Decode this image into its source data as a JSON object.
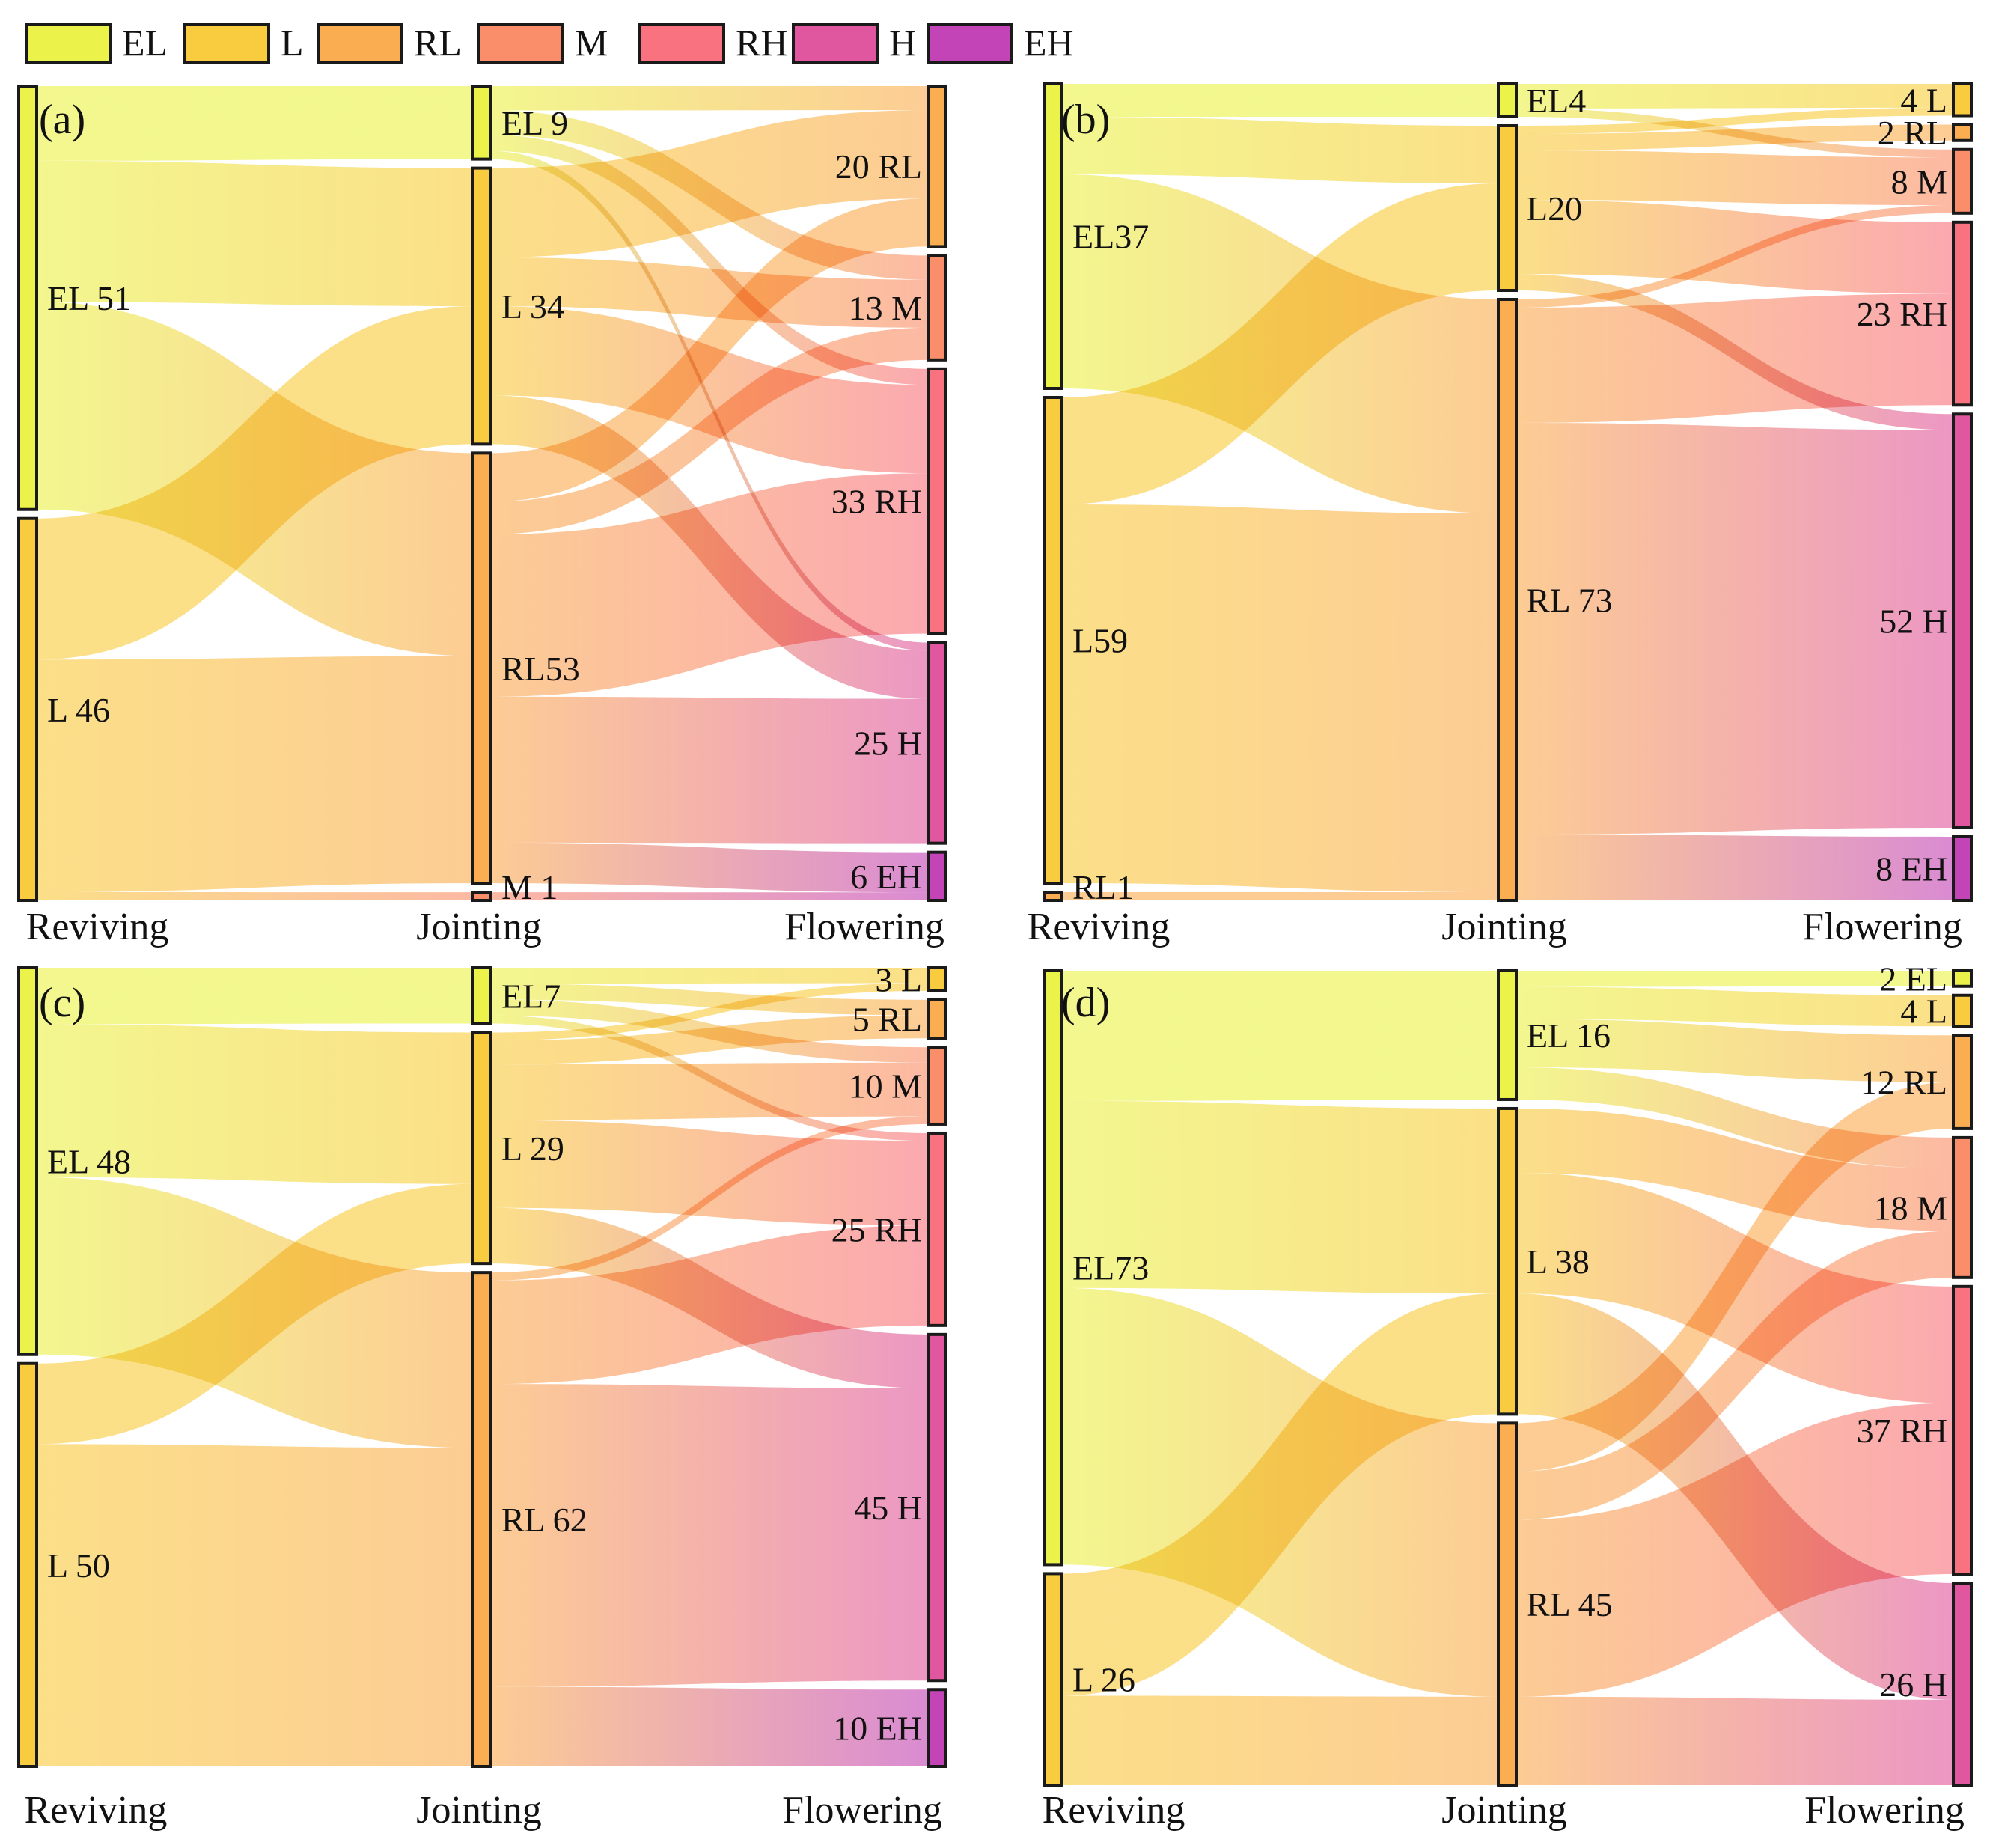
{
  "legend": {
    "items": [
      {
        "key": "EL",
        "label": "EL"
      },
      {
        "key": "L",
        "label": "L"
      },
      {
        "key": "RL",
        "label": "RL"
      },
      {
        "key": "M",
        "label": "M"
      },
      {
        "key": "RH",
        "label": "RH"
      },
      {
        "key": "H",
        "label": "H"
      },
      {
        "key": "EH",
        "label": "EH"
      }
    ]
  },
  "colors": {
    "EL": "#ebf249",
    "L": "#f9cc3f",
    "RL": "#fbad52",
    "M": "#fa8e6a",
    "RH": "#f8737f",
    "H": "#e0579f",
    "EH": "#c344b6"
  },
  "chart_data": [
    {
      "type": "sankey",
      "panel": "(a)",
      "stages": [
        "Reviving",
        "Jointing",
        "Flowering"
      ],
      "nodes": [
        [
          {
            "id": "EL",
            "value": 51,
            "label": "EL 51"
          },
          {
            "id": "L",
            "value": 46,
            "label": "L 46"
          }
        ],
        [
          {
            "id": "EL",
            "value": 9,
            "label": "EL 9"
          },
          {
            "id": "L",
            "value": 34,
            "label": "L 34"
          },
          {
            "id": "RL",
            "value": 53,
            "label": "RL53"
          },
          {
            "id": "M",
            "value": 1,
            "label": "M 1"
          }
        ],
        [
          {
            "id": "RL",
            "value": 20,
            "label": "20 RL"
          },
          {
            "id": "M",
            "value": 13,
            "label": "13 M"
          },
          {
            "id": "RH",
            "value": 33,
            "label": "33 RH"
          },
          {
            "id": "H",
            "value": 25,
            "label": "25 H"
          },
          {
            "id": "EH",
            "value": 6,
            "label": "6 EH"
          }
        ]
      ],
      "links": [
        [
          {
            "from": "EL",
            "to": "EL",
            "value": 9
          },
          {
            "from": "EL",
            "to": "L",
            "value": 17
          },
          {
            "from": "EL",
            "to": "RL",
            "value": 25
          },
          {
            "from": "L",
            "to": "L",
            "value": 17
          },
          {
            "from": "L",
            "to": "RL",
            "value": 28
          },
          {
            "from": "L",
            "to": "M",
            "value": 1
          }
        ],
        [
          {
            "from": "EL",
            "to": "RL",
            "value": 3
          },
          {
            "from": "EL",
            "to": "M",
            "value": 3
          },
          {
            "from": "EL",
            "to": "RH",
            "value": 2
          },
          {
            "from": "EL",
            "to": "H",
            "value": 1
          },
          {
            "from": "L",
            "to": "RL",
            "value": 11
          },
          {
            "from": "L",
            "to": "M",
            "value": 6
          },
          {
            "from": "L",
            "to": "RH",
            "value": 11
          },
          {
            "from": "L",
            "to": "H",
            "value": 6
          },
          {
            "from": "RL",
            "to": "RL",
            "value": 6
          },
          {
            "from": "RL",
            "to": "M",
            "value": 4
          },
          {
            "from": "RL",
            "to": "RH",
            "value": 20
          },
          {
            "from": "RL",
            "to": "H",
            "value": 18
          },
          {
            "from": "RL",
            "to": "EH",
            "value": 5
          },
          {
            "from": "M",
            "to": "EH",
            "value": 1
          }
        ]
      ]
    },
    {
      "type": "sankey",
      "panel": "(b)",
      "stages": [
        "Reviving",
        "Jointing",
        "Flowering"
      ],
      "nodes": [
        [
          {
            "id": "EL",
            "value": 37,
            "label": "EL37"
          },
          {
            "id": "L",
            "value": 59,
            "label": "L59"
          },
          {
            "id": "RL",
            "value": 1,
            "label": "RL1"
          }
        ],
        [
          {
            "id": "EL",
            "value": 4,
            "label": "EL4"
          },
          {
            "id": "L",
            "value": 20,
            "label": "L20"
          },
          {
            "id": "RL",
            "value": 73,
            "label": "RL 73"
          }
        ],
        [
          {
            "id": "L",
            "value": 4,
            "label": "4 L"
          },
          {
            "id": "RL",
            "value": 2,
            "label": "2 RL"
          },
          {
            "id": "M",
            "value": 8,
            "label": "8 M"
          },
          {
            "id": "RH",
            "value": 23,
            "label": "23 RH"
          },
          {
            "id": "H",
            "value": 52,
            "label": "52 H"
          },
          {
            "id": "EH",
            "value": 8,
            "label": "8 EH"
          }
        ]
      ],
      "links": [
        [
          {
            "from": "EL",
            "to": "EL",
            "value": 4
          },
          {
            "from": "EL",
            "to": "L",
            "value": 7
          },
          {
            "from": "EL",
            "to": "RL",
            "value": 26
          },
          {
            "from": "L",
            "to": "L",
            "value": 13
          },
          {
            "from": "L",
            "to": "RL",
            "value": 46
          },
          {
            "from": "RL",
            "to": "RL",
            "value": 1
          }
        ],
        [
          {
            "from": "EL",
            "to": "L",
            "value": 3
          },
          {
            "from": "EL",
            "to": "M",
            "value": 1
          },
          {
            "from": "L",
            "to": "L",
            "value": 1
          },
          {
            "from": "L",
            "to": "RL",
            "value": 2
          },
          {
            "from": "L",
            "to": "M",
            "value": 6
          },
          {
            "from": "L",
            "to": "RH",
            "value": 9
          },
          {
            "from": "L",
            "to": "H",
            "value": 2
          },
          {
            "from": "RL",
            "to": "M",
            "value": 1
          },
          {
            "from": "RL",
            "to": "RH",
            "value": 14
          },
          {
            "from": "RL",
            "to": "H",
            "value": 50
          },
          {
            "from": "RL",
            "to": "EH",
            "value": 8
          }
        ]
      ]
    },
    {
      "type": "sankey",
      "panel": "(c)",
      "stages": [
        "Reviving",
        "Jointing",
        "Flowering"
      ],
      "nodes": [
        [
          {
            "id": "EL",
            "value": 48,
            "label": "EL 48"
          },
          {
            "id": "L",
            "value": 50,
            "label": "L 50"
          }
        ],
        [
          {
            "id": "EL",
            "value": 7,
            "label": "EL7"
          },
          {
            "id": "L",
            "value": 29,
            "label": "L 29"
          },
          {
            "id": "RL",
            "value": 62,
            "label": "RL 62"
          }
        ],
        [
          {
            "id": "L",
            "value": 3,
            "label": "3 L"
          },
          {
            "id": "RL",
            "value": 5,
            "label": "5 RL"
          },
          {
            "id": "M",
            "value": 10,
            "label": "10 M"
          },
          {
            "id": "RH",
            "value": 25,
            "label": "25 RH"
          },
          {
            "id": "H",
            "value": 45,
            "label": "45 H"
          },
          {
            "id": "EH",
            "value": 10,
            "label": "10 EH"
          }
        ]
      ],
      "links": [
        [
          {
            "from": "EL",
            "to": "EL",
            "value": 7
          },
          {
            "from": "EL",
            "to": "L",
            "value": 19
          },
          {
            "from": "EL",
            "to": "RL",
            "value": 22
          },
          {
            "from": "L",
            "to": "L",
            "value": 10
          },
          {
            "from": "L",
            "to": "RL",
            "value": 40
          }
        ],
        [
          {
            "from": "EL",
            "to": "L",
            "value": 2
          },
          {
            "from": "EL",
            "to": "RL",
            "value": 2
          },
          {
            "from": "EL",
            "to": "M",
            "value": 2
          },
          {
            "from": "EL",
            "to": "RH",
            "value": 1
          },
          {
            "from": "L",
            "to": "L",
            "value": 1
          },
          {
            "from": "L",
            "to": "RL",
            "value": 3
          },
          {
            "from": "L",
            "to": "M",
            "value": 7
          },
          {
            "from": "L",
            "to": "RH",
            "value": 11
          },
          {
            "from": "L",
            "to": "H",
            "value": 7
          },
          {
            "from": "RL",
            "to": "M",
            "value": 1
          },
          {
            "from": "RL",
            "to": "RH",
            "value": 13
          },
          {
            "from": "RL",
            "to": "H",
            "value": 38
          },
          {
            "from": "RL",
            "to": "EH",
            "value": 10
          }
        ]
      ]
    },
    {
      "type": "sankey",
      "panel": "(d)",
      "stages": [
        "Reviving",
        "Jointing",
        "Flowering"
      ],
      "nodes": [
        [
          {
            "id": "EL",
            "value": 73,
            "label": "EL73"
          },
          {
            "id": "L",
            "value": 26,
            "label": "L 26"
          }
        ],
        [
          {
            "id": "EL",
            "value": 16,
            "label": "EL 16"
          },
          {
            "id": "L",
            "value": 38,
            "label": "L 38"
          },
          {
            "id": "RL",
            "value": 45,
            "label": "RL 45"
          }
        ],
        [
          {
            "id": "EL",
            "value": 2,
            "label": "2 EL"
          },
          {
            "id": "L",
            "value": 4,
            "label": "4 L"
          },
          {
            "id": "RL",
            "value": 12,
            "label": "12 RL"
          },
          {
            "id": "M",
            "value": 18,
            "label": "18 M"
          },
          {
            "id": "RH",
            "value": 37,
            "label": "37 RH"
          },
          {
            "id": "H",
            "value": 26,
            "label": "26 H"
          }
        ]
      ],
      "links": [
        [
          {
            "from": "EL",
            "to": "EL",
            "value": 16
          },
          {
            "from": "EL",
            "to": "L",
            "value": 23
          },
          {
            "from": "EL",
            "to": "RL",
            "value": 34
          },
          {
            "from": "L",
            "to": "L",
            "value": 15
          },
          {
            "from": "L",
            "to": "RL",
            "value": 11
          }
        ],
        [
          {
            "from": "EL",
            "to": "EL",
            "value": 2
          },
          {
            "from": "EL",
            "to": "L",
            "value": 4
          },
          {
            "from": "EL",
            "to": "RL",
            "value": 6
          },
          {
            "from": "EL",
            "to": "M",
            "value": 4
          },
          {
            "from": "L",
            "to": "M",
            "value": 8
          },
          {
            "from": "L",
            "to": "RH",
            "value": 15
          },
          {
            "from": "L",
            "to": "H",
            "value": 15
          },
          {
            "from": "RL",
            "to": "RL",
            "value": 6
          },
          {
            "from": "RL",
            "to": "M",
            "value": 6
          },
          {
            "from": "RL",
            "to": "RH",
            "value": 22
          },
          {
            "from": "RL",
            "to": "H",
            "value": 11
          }
        ]
      ]
    }
  ]
}
